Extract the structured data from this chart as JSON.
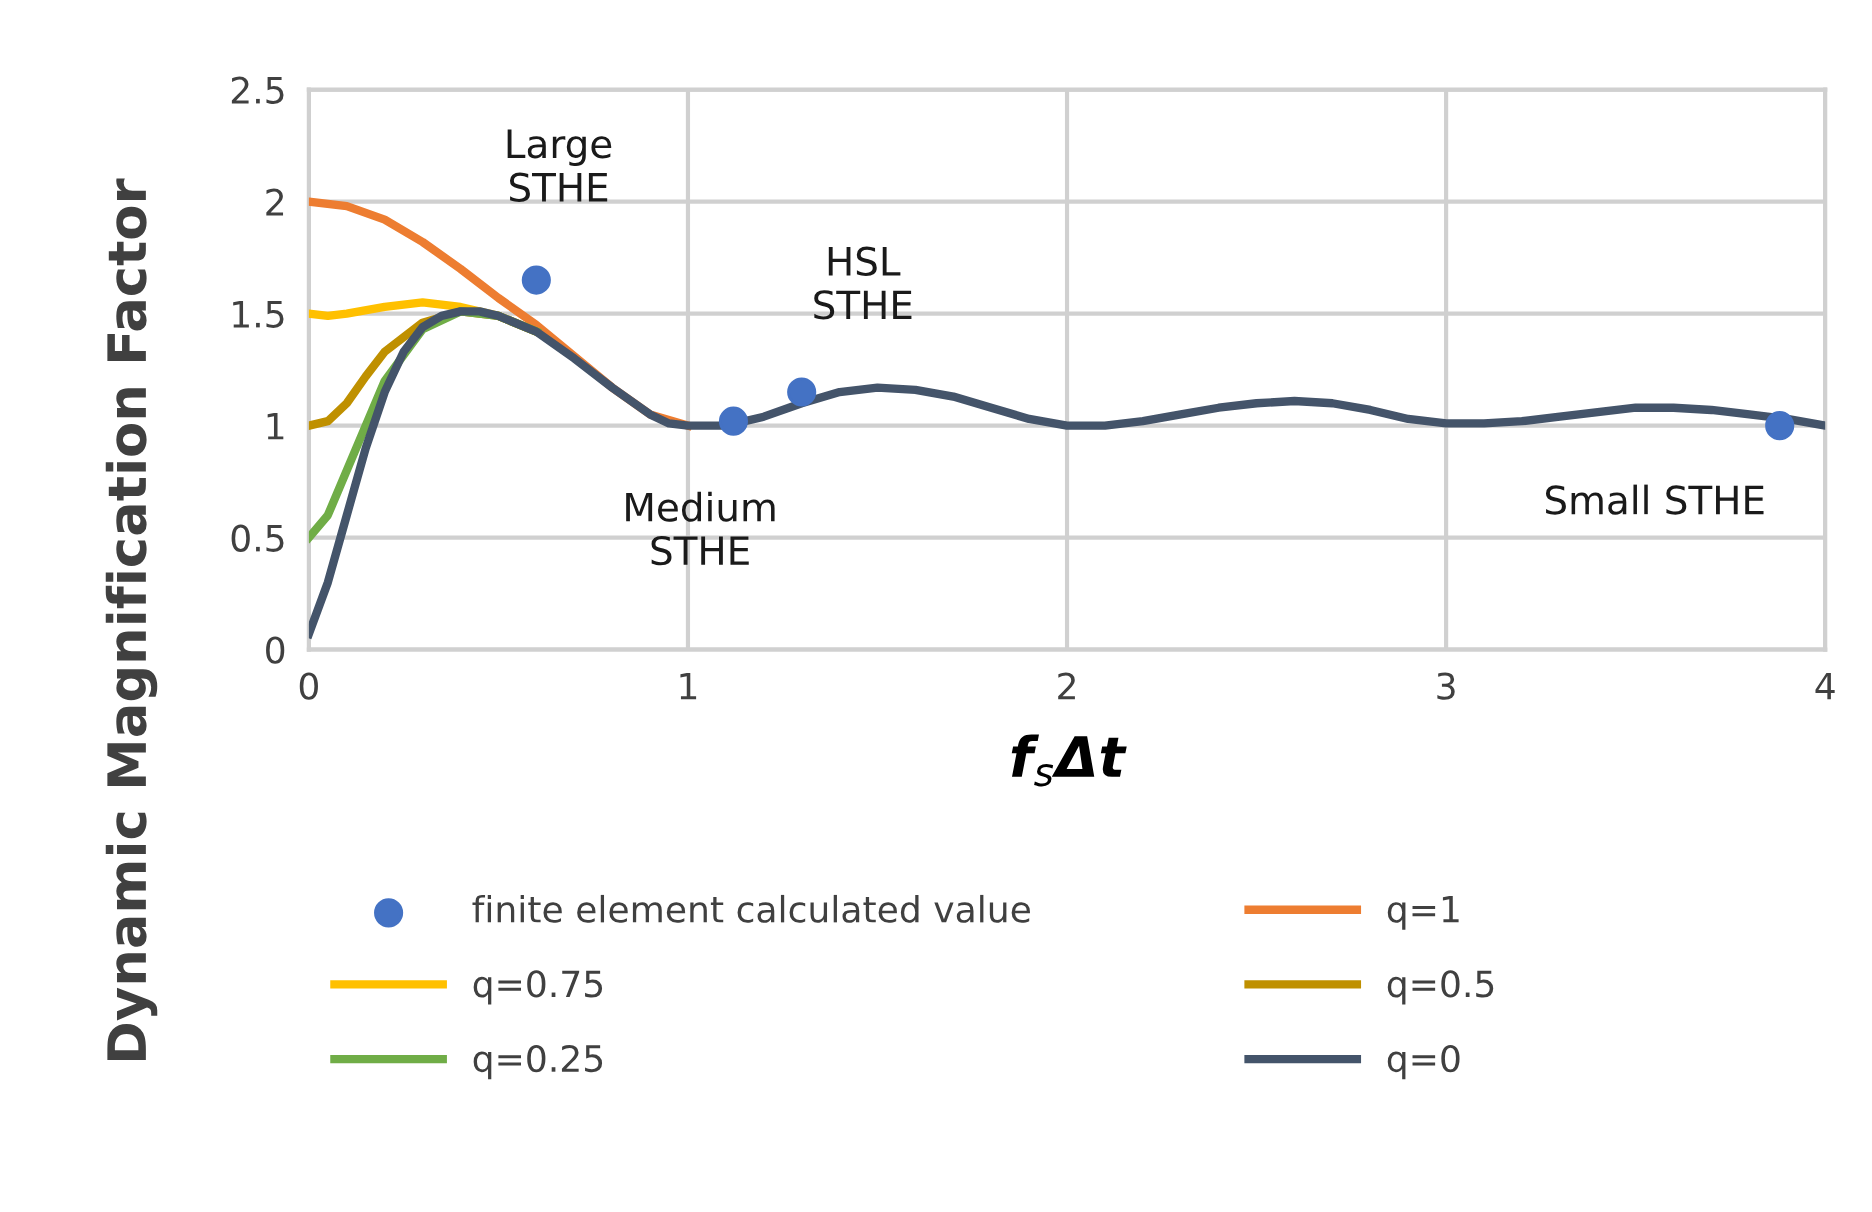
{
  "chart_data": {
    "type": "line",
    "xlabel": "f$_{s}$Δt",
    "ylabel": "Dynamic Magnification Factor",
    "xlim": [
      0,
      4
    ],
    "xticks": [
      0,
      1,
      2,
      3,
      4
    ],
    "ylim": [
      0,
      2.5
    ],
    "yticks": [
      0,
      0.5,
      1,
      1.5,
      2,
      2.5
    ],
    "grid": true,
    "legend": "bottom",
    "marker": "none",
    "line_style": "solid",
    "annotations": [
      {
        "text": "Large\nSTHE",
        "x": 0.6,
        "y": 1.65
      },
      {
        "text": "Medium\nSTHE",
        "x": 1.12,
        "y": 1.02
      },
      {
        "text": "HSL\nSTHE",
        "x": 1.3,
        "y": 1.15
      },
      {
        "text": "Small STHE",
        "x": 3.88,
        "y": 1.0
      }
    ],
    "series": [
      {
        "name": "finite element calculated value",
        "type": "scatter",
        "marker": "circle",
        "color": "#4472c4",
        "x": [
          0.6,
          1.12,
          1.3,
          3.88
        ],
        "values": [
          1.65,
          1.02,
          1.15,
          1.0
        ]
      },
      {
        "name": "q=1",
        "color": "#ed7d31",
        "x": [
          0,
          0.1,
          0.2,
          0.3,
          0.4,
          0.5,
          0.6,
          0.7,
          0.8,
          0.9,
          1.0
        ],
        "values": [
          2.0,
          1.98,
          1.92,
          1.82,
          1.7,
          1.57,
          1.45,
          1.31,
          1.17,
          1.05,
          1.0
        ]
      },
      {
        "name": "q=0.75",
        "color": "#ffc000",
        "x": [
          0,
          0.05,
          0.1,
          0.2,
          0.3,
          0.4,
          0.5,
          0.6
        ],
        "values": [
          1.5,
          1.49,
          1.5,
          1.53,
          1.55,
          1.53,
          1.49,
          1.42
        ]
      },
      {
        "name": "q=0.5",
        "color": "#bf9000",
        "x": [
          0,
          0.05,
          0.1,
          0.15,
          0.2,
          0.3,
          0.4,
          0.5,
          0.6
        ],
        "values": [
          1.0,
          1.02,
          1.1,
          1.22,
          1.33,
          1.46,
          1.51,
          1.49,
          1.42
        ]
      },
      {
        "name": "q=0.25",
        "color": "#70ad47",
        "x": [
          0,
          0.05,
          0.1,
          0.15,
          0.2,
          0.3,
          0.4,
          0.5,
          0.6
        ],
        "values": [
          0.5,
          0.6,
          0.8,
          1.0,
          1.2,
          1.43,
          1.51,
          1.49,
          1.42
        ]
      },
      {
        "name": "q=0",
        "color": "#44546a",
        "x": [
          0,
          0.05,
          0.1,
          0.15,
          0.2,
          0.25,
          0.3,
          0.35,
          0.4,
          0.45,
          0.5,
          0.6,
          0.7,
          0.8,
          0.9,
          0.95,
          1.0,
          1.1,
          1.2,
          1.3,
          1.4,
          1.5,
          1.6,
          1.7,
          1.8,
          1.9,
          2.0,
          2.1,
          2.2,
          2.3,
          2.4,
          2.5,
          2.6,
          2.7,
          2.8,
          2.9,
          3.0,
          3.1,
          3.2,
          3.3,
          3.4,
          3.5,
          3.6,
          3.7,
          3.8,
          3.9,
          4.0
        ],
        "values": [
          0.07,
          0.3,
          0.6,
          0.9,
          1.15,
          1.33,
          1.44,
          1.49,
          1.51,
          1.51,
          1.49,
          1.42,
          1.3,
          1.17,
          1.05,
          1.01,
          1.0,
          1.0,
          1.04,
          1.1,
          1.15,
          1.17,
          1.16,
          1.13,
          1.08,
          1.03,
          1.0,
          1.0,
          1.02,
          1.05,
          1.08,
          1.1,
          1.11,
          1.1,
          1.07,
          1.03,
          1.01,
          1.01,
          1.02,
          1.04,
          1.06,
          1.08,
          1.08,
          1.07,
          1.05,
          1.03,
          1.0
        ]
      }
    ]
  }
}
